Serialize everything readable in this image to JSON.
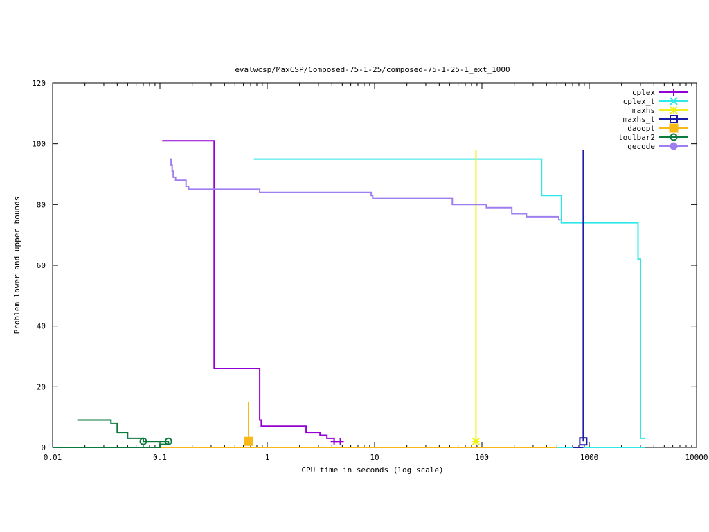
{
  "chart_data": {
    "type": "line",
    "title": "evalwcsp/MaxCSP/Composed-75-1-25/composed-75-1-25-1_ext_1000",
    "xlabel": "CPU time in seconds (log scale)",
    "ylabel": "Problem lower and upper bounds",
    "xscale": "log",
    "xlim": [
      0.01,
      10000
    ],
    "ylim": [
      0,
      120
    ],
    "xticks": [
      {
        "value": 0.01,
        "label": "0.01"
      },
      {
        "value": 0.1,
        "label": "0.1"
      },
      {
        "value": 1,
        "label": "1"
      },
      {
        "value": 10,
        "label": "10"
      },
      {
        "value": 100,
        "label": "100"
      },
      {
        "value": 1000,
        "label": "1000"
      },
      {
        "value": 10000,
        "label": "10000"
      }
    ],
    "yticks": [
      {
        "value": 0,
        "label": "0"
      },
      {
        "value": 20,
        "label": "20"
      },
      {
        "value": 40,
        "label": "40"
      },
      {
        "value": 60,
        "label": "60"
      },
      {
        "value": 80,
        "label": "80"
      },
      {
        "value": 100,
        "label": "100"
      },
      {
        "value": 120,
        "label": "120"
      }
    ],
    "grid": false,
    "legend_position": "top-right",
    "series": [
      {
        "name": "cplex",
        "color": "#9400d3",
        "marker": "plus",
        "upper": [
          [
            0.105,
            101
          ],
          [
            0.32,
            101
          ],
          [
            0.32,
            26
          ],
          [
            0.85,
            26
          ],
          [
            0.85,
            9
          ],
          [
            0.88,
            9
          ],
          [
            0.88,
            7
          ],
          [
            2.3,
            7
          ],
          [
            2.3,
            5
          ],
          [
            3.1,
            5
          ],
          [
            3.1,
            4
          ],
          [
            3.6,
            4
          ],
          [
            3.6,
            3
          ],
          [
            4.2,
            3
          ],
          [
            4.2,
            2
          ],
          [
            4.8,
            2
          ]
        ],
        "lower": [
          [
            0.01,
            0
          ],
          [
            4.8,
            0
          ]
        ],
        "markers": [
          [
            4.2,
            2
          ],
          [
            4.8,
            2
          ]
        ]
      },
      {
        "name": "cplex_t",
        "color": "#2ee8e8",
        "marker": "x",
        "upper": [
          [
            0.75,
            95
          ],
          [
            360,
            95
          ],
          [
            360,
            83
          ],
          [
            550,
            83
          ],
          [
            550,
            74
          ],
          [
            2850,
            74
          ],
          [
            2850,
            62
          ],
          [
            3000,
            62
          ],
          [
            3000,
            3
          ],
          [
            3300,
            3
          ]
        ],
        "lower": [
          [
            500,
            0
          ],
          [
            3300,
            0
          ]
        ],
        "markers": []
      },
      {
        "name": "maxhs",
        "color": "#f0f01c",
        "marker": "star",
        "upper": [
          [
            88,
            98
          ],
          [
            88,
            2
          ]
        ],
        "lower": [
          [
            0.01,
            0
          ],
          [
            88,
            0
          ]
        ],
        "markers": [
          [
            88,
            2
          ]
        ]
      },
      {
        "name": "maxhs_t",
        "color": "#1c1ca8",
        "marker": "square",
        "upper": [
          [
            880,
            98
          ],
          [
            880,
            2
          ]
        ],
        "lower": [
          [
            700,
            0
          ],
          [
            880,
            0
          ]
        ],
        "markers": [
          [
            880,
            2
          ]
        ]
      },
      {
        "name": "daoopt",
        "color": "#f8b818",
        "marker": "filled-square",
        "upper": [
          [
            0.67,
            15
          ],
          [
            0.67,
            2
          ]
        ],
        "lower": [
          [
            0.01,
            0
          ],
          [
            500,
            0
          ]
        ],
        "markers": [
          [
            0.67,
            2
          ]
        ]
      },
      {
        "name": "toulbar2",
        "color": "#0b7a3e",
        "marker": "circle",
        "upper": [
          [
            0.017,
            9
          ],
          [
            0.035,
            9
          ],
          [
            0.035,
            8
          ],
          [
            0.04,
            8
          ],
          [
            0.04,
            5
          ],
          [
            0.05,
            5
          ],
          [
            0.05,
            3
          ],
          [
            0.07,
            3
          ],
          [
            0.07,
            2
          ],
          [
            0.12,
            2
          ]
        ],
        "lower": [
          [
            0.01,
            0
          ],
          [
            0.1,
            0
          ],
          [
            0.1,
            1
          ],
          [
            0.12,
            1
          ],
          [
            0.12,
            2
          ]
        ],
        "markers": [
          [
            0.07,
            2
          ],
          [
            0.12,
            2
          ]
        ]
      },
      {
        "name": "gecode",
        "color": "#9f7ff0",
        "marker": "filled-circle",
        "upper": [
          [
            0.125,
            95
          ],
          [
            0.127,
            95
          ],
          [
            0.127,
            93
          ],
          [
            0.13,
            93
          ],
          [
            0.13,
            91
          ],
          [
            0.133,
            91
          ],
          [
            0.133,
            89
          ],
          [
            0.14,
            89
          ],
          [
            0.14,
            88
          ],
          [
            0.175,
            88
          ],
          [
            0.175,
            86
          ],
          [
            0.185,
            86
          ],
          [
            0.185,
            85
          ],
          [
            0.85,
            85
          ],
          [
            0.85,
            84
          ],
          [
            9.3,
            84
          ],
          [
            9.3,
            83
          ],
          [
            9.6,
            83
          ],
          [
            9.6,
            82
          ],
          [
            53,
            82
          ],
          [
            53,
            80
          ],
          [
            110,
            80
          ],
          [
            110,
            79
          ],
          [
            190,
            79
          ],
          [
            190,
            77
          ],
          [
            260,
            77
          ],
          [
            260,
            76
          ],
          [
            520,
            76
          ],
          [
            520,
            75
          ],
          [
            540,
            75
          ]
        ],
        "lower": [],
        "markers": []
      }
    ]
  }
}
